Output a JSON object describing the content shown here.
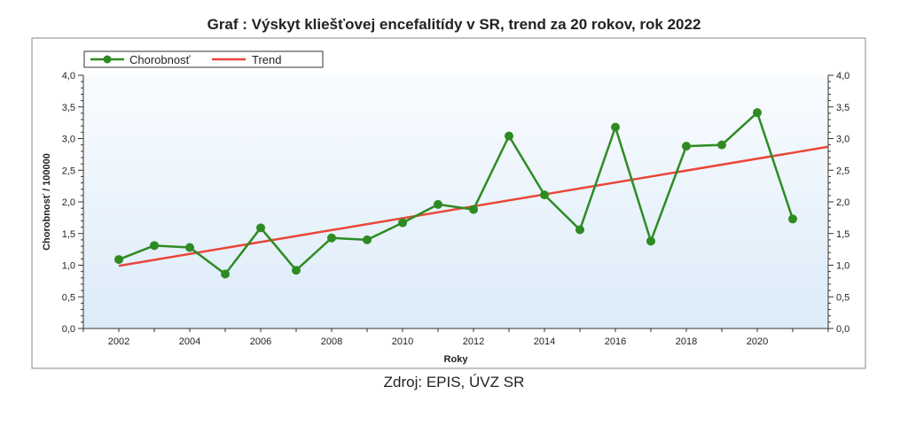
{
  "page": {
    "title": "Graf : Výskyt kliešťovej encefalitídy v SR, trend za 20 rokov, rok 2022",
    "source": "Zdroj: EPIS, ÚVZ SR"
  },
  "colors": {
    "series": "#2e8b22",
    "trend": "#e8473a",
    "plot_bg_top": "#f9fcff",
    "plot_bg_bottom": "#dcebf8",
    "frame": "#777777"
  },
  "chart_data": {
    "type": "line",
    "title": "Graf : Výskyt kliešťovej encefalitídy v SR, trend za 20 rokov, rok 2022",
    "xlabel": "Roky",
    "ylabel": "Chorobnosť / 100000",
    "xlim": [
      2001,
      2022
    ],
    "ylim": [
      0,
      4
    ],
    "x_ticks": [
      2002,
      2004,
      2006,
      2008,
      2010,
      2012,
      2014,
      2016,
      2018,
      2020
    ],
    "y_ticks": [
      "0,0",
      "0,5",
      "1,0",
      "1,5",
      "2,0",
      "2,5",
      "3,0",
      "3,5",
      "4,0"
    ],
    "y_tick_values": [
      0,
      0.5,
      1,
      1.5,
      2,
      2.5,
      3,
      3.5,
      4
    ],
    "legend_position": "top-left",
    "series": [
      {
        "name": "Chorobnosť",
        "x": [
          2002,
          2003,
          2004,
          2005,
          2006,
          2007,
          2008,
          2009,
          2010,
          2011,
          2012,
          2013,
          2014,
          2015,
          2016,
          2017,
          2018,
          2019,
          2020,
          2021
        ],
        "values": [
          1.09,
          1.31,
          1.28,
          0.86,
          1.59,
          0.92,
          1.43,
          1.4,
          1.67,
          1.96,
          1.88,
          3.04,
          2.11,
          1.56,
          3.18,
          1.38,
          2.88,
          2.9,
          3.41,
          1.73
        ]
      },
      {
        "name": "Trend",
        "x": [
          2002,
          2022
        ],
        "values": [
          0.99,
          2.87
        ]
      }
    ]
  }
}
